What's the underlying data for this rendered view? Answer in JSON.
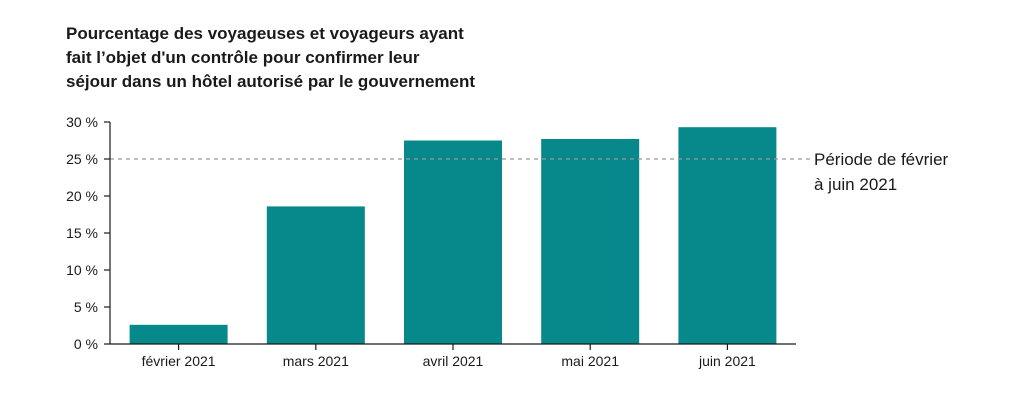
{
  "colors": {
    "bar": "#07898b",
    "axis": "#1a1a1a",
    "reference_line": "#999999"
  },
  "chart_data": {
    "type": "bar",
    "title_lines": [
      "Pourcentage des voyageuses et voyageurs ayant",
      "fait l’objet d'un contrôle pour confirmer leur",
      "séjour dans un hôtel autorisé par le gouvernement"
    ],
    "categories": [
      "février 2021",
      "mars 2021",
      "avril 2021",
      "mai 2021",
      "juin 2021"
    ],
    "values": [
      2.6,
      18.6,
      27.5,
      27.7,
      29.3
    ],
    "value_unit": "%",
    "ylim": [
      0,
      30
    ],
    "yticks": [
      0,
      5,
      10,
      15,
      20,
      25,
      30
    ],
    "ytick_labels": [
      "0 %",
      "5 %",
      "10 %",
      "15 %",
      "20 %",
      "25 %",
      "30 %"
    ],
    "grid": false,
    "reference_line": {
      "value": 25,
      "style": "dashed",
      "label_lines": [
        "Période de février",
        "à juin 2021"
      ]
    }
  }
}
